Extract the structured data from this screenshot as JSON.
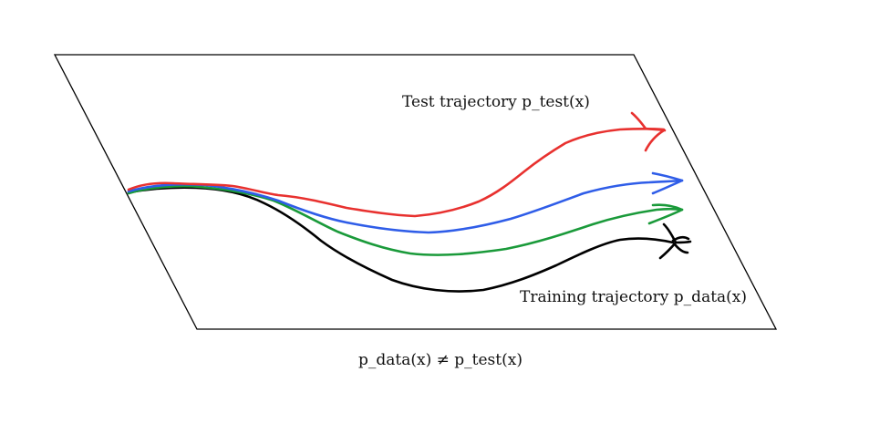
{
  "labels": {
    "test_trajectory": "Test trajectory p_test(x)",
    "training_trajectory": "Training trajectory p_data(x)",
    "inequality": "p_data(x) ≠ p_test(x)"
  },
  "colors": {
    "test_trajectory": "#e8312f",
    "blue_trajectory": "#2f5de8",
    "green_trajectory": "#1a9a3a",
    "training_trajectory": "#000000",
    "plane": "#000000"
  }
}
